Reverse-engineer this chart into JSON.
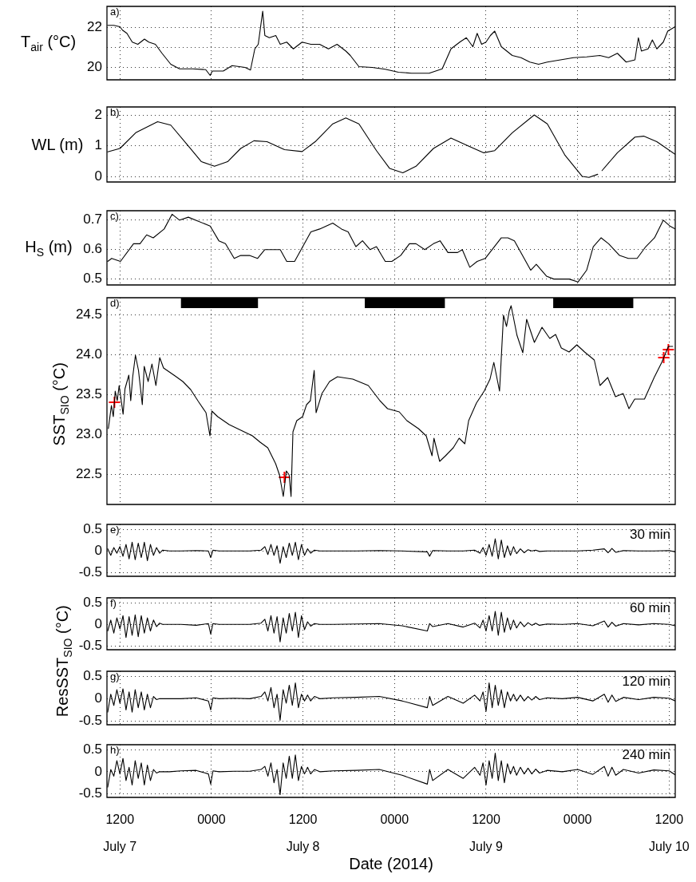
{
  "chart_data": [
    {
      "type": "line",
      "ylabel": "T$_{air}$ (°C)",
      "annotations": [
        "a)"
      ],
      "grid": true,
      "tick_labels": "y",
      "marker": "none",
      "xlim": [
        "2014-07-07T10:18",
        "2014-07-10T12:48"
      ],
      "xticks": [
        {
          "value": "2014-07-07T12:00",
          "label": null
        },
        {
          "value": "2014-07-08T00:00",
          "label": null
        },
        {
          "value": "2014-07-08T12:00",
          "label": null
        },
        {
          "value": "2014-07-09T00:00",
          "label": null
        },
        {
          "value": "2014-07-09T12:00",
          "label": null
        },
        {
          "value": "2014-07-10T00:00",
          "label": null
        },
        {
          "value": "2014-07-10T12:00",
          "label": null
        }
      ],
      "ylim": [
        19.38,
        23.06
      ],
      "yticks": [
        20,
        {
          "value": 21,
          "label": null
        },
        22
      ],
      "x": [
        "2014-07-07T10:24",
        "2014-07-07T11:12",
        "2014-07-07T12:00",
        "2014-07-07T12:20",
        "2014-07-07T12:55",
        "2014-07-07T13:37",
        "2014-07-07T14:21",
        "2014-07-07T15:13",
        "2014-07-07T15:47",
        "2014-07-07T16:39",
        "2014-07-07T17:31",
        "2014-07-07T18:40",
        "2014-07-07T19:49",
        "2014-07-07T21:32",
        "2014-07-07T23:15",
        "2014-07-07T23:50",
        "2014-07-08T00:07",
        "2014-07-08T01:33",
        "2014-07-08T02:42",
        "2014-07-08T04:25",
        "2014-07-08T05:07",
        "2014-07-08T05:41",
        "2014-07-08T06:08",
        "2014-07-08T06:43",
        "2014-07-08T07:00",
        "2014-07-08T07:35",
        "2014-07-08T08:26",
        "2014-07-08T09:01",
        "2014-07-08T09:52",
        "2014-07-08T10:44",
        "2014-07-08T11:53",
        "2014-07-08T13:02",
        "2014-07-08T14:11",
        "2014-07-08T15:20",
        "2014-07-08T16:28",
        "2014-07-08T17:37",
        "2014-07-08T18:12",
        "2014-07-08T19:20",
        "2014-07-08T21:04",
        "2014-07-08T22:47",
        "2014-07-09T00:31",
        "2014-07-09T02:14",
        "2014-07-09T04:32",
        "2014-07-09T06:15",
        "2014-07-09T07:24",
        "2014-07-09T08:33",
        "2014-07-09T09:25",
        "2014-07-09T10:16",
        "2014-07-09T10:50",
        "2014-07-09T11:25",
        "2014-07-09T11:59",
        "2014-07-09T12:34",
        "2014-07-09T13:08",
        "2014-07-09T14:00",
        "2014-07-09T15:26",
        "2014-07-09T16:35",
        "2014-07-09T17:44",
        "2014-07-09T18:53",
        "2014-07-09T20:02",
        "2014-07-09T21:45",
        "2014-07-09T23:28",
        "2014-07-10T01:11",
        "2014-07-10T02:55",
        "2014-07-10T04:04",
        "2014-07-10T05:13",
        "2014-07-10T06:22",
        "2014-07-10T07:31",
        "2014-07-10T07:58",
        "2014-07-10T08:22",
        "2014-07-10T09:14",
        "2014-07-10T09:48",
        "2014-07-10T10:23",
        "2014-07-10T11:14",
        "2014-07-10T11:49",
        "2014-07-10T12:47"
      ],
      "series": [
        {
          "color": "#000000",
          "values": [
            22.11,
            22.11,
            22.04,
            21.87,
            21.71,
            21.27,
            21.16,
            21.42,
            21.27,
            21.16,
            20.71,
            20.16,
            19.93,
            19.93,
            19.89,
            19.6,
            19.82,
            19.82,
            20.09,
            20.0,
            19.87,
            20.93,
            21.16,
            22.82,
            21.6,
            21.49,
            21.6,
            21.16,
            21.27,
            20.93,
            21.27,
            21.16,
            21.16,
            20.93,
            21.16,
            20.82,
            20.6,
            20.04,
            20.0,
            19.91,
            19.76,
            19.71,
            19.71,
            19.93,
            20.93,
            21.27,
            21.49,
            21.04,
            21.71,
            21.16,
            21.27,
            21.6,
            21.82,
            21.04,
            20.6,
            20.49,
            20.27,
            20.16,
            20.27,
            20.38,
            20.49,
            20.53,
            20.6,
            20.49,
            20.71,
            20.27,
            20.38,
            21.49,
            20.82,
            20.93,
            21.38,
            20.93,
            21.27,
            21.82,
            22.04
          ]
        }
      ]
    },
    {
      "type": "line",
      "ylabel": "WL (m)",
      "annotations": [
        "b)"
      ],
      "grid": true,
      "tick_labels": "y",
      "marker": "none",
      "xlim": [
        "2014-07-07T10:18",
        "2014-07-10T12:48"
      ],
      "xticks": [
        {
          "value": "2014-07-07T12:00",
          "label": null
        },
        {
          "value": "2014-07-08T00:00",
          "label": null
        },
        {
          "value": "2014-07-08T12:00",
          "label": null
        },
        {
          "value": "2014-07-09T00:00",
          "label": null
        },
        {
          "value": "2014-07-09T12:00",
          "label": null
        },
        {
          "value": "2014-07-10T00:00",
          "label": null
        },
        {
          "value": "2014-07-10T12:00",
          "label": null
        }
      ],
      "ylim": [
        -0.18,
        2.26
      ],
      "yticks": [
        0,
        1,
        2
      ],
      "x": [
        "2014-07-07T10:24",
        "2014-07-07T12:00",
        "2014-07-07T14:04",
        "2014-07-07T16:56",
        "2014-07-07T18:40",
        "2014-07-07T20:58",
        "2014-07-07T22:41",
        "2014-07-08T00:24",
        "2014-07-08T02:07",
        "2014-07-08T03:50",
        "2014-07-08T05:34",
        "2014-07-08T07:17",
        "2014-07-08T09:35",
        "2014-07-08T11:53",
        "2014-07-08T13:36",
        "2014-07-08T15:54",
        "2014-07-08T17:37",
        "2014-07-08T19:20",
        "2014-07-08T21:38",
        "2014-07-08T23:22",
        "2014-07-09T01:05",
        "2014-07-09T02:49",
        "2014-07-09T05:06",
        "2014-07-09T07:24",
        "2014-07-09T09:42",
        "2014-07-09T11:42",
        "2014-07-09T13:08",
        "2014-07-09T15:26",
        "2014-07-09T18:19",
        "2014-07-09T20:02",
        "2014-07-09T22:19",
        "2014-07-10T00:37",
        "2014-07-10T01:29",
        "2014-07-10T02:38",
        "2014-07-10T02:55",
        "2014-07-10T03:12",
        "2014-07-10T05:13",
        "2014-07-10T07:31",
        "2014-07-10T08:40",
        "2014-07-10T10:23",
        "2014-07-10T12:47"
      ],
      "series": [
        {
          "color": "#000000",
          "values": [
            0.8,
            0.91,
            1.42,
            1.78,
            1.67,
            0.99,
            0.48,
            0.33,
            0.48,
            0.91,
            1.16,
            1.13,
            0.87,
            0.81,
            1.13,
            1.71,
            1.9,
            1.71,
            0.84,
            0.26,
            0.12,
            0.33,
            0.91,
            1.25,
            0.99,
            0.77,
            0.84,
            1.42,
            2.0,
            1.71,
            0.7,
            0.0,
            -0.03,
            0.07,
            null,
            0.19,
            0.77,
            1.28,
            1.31,
            1.13,
            0.72
          ]
        }
      ]
    },
    {
      "type": "line",
      "ylabel": "H$_{S}$ (m)",
      "annotations": [
        "c)"
      ],
      "grid": true,
      "tick_labels": "y",
      "marker": "none",
      "xlim": [
        "2014-07-07T10:18",
        "2014-07-10T12:48"
      ],
      "xticks": [
        {
          "value": "2014-07-07T12:00",
          "label": null
        },
        {
          "value": "2014-07-08T00:00",
          "label": null
        },
        {
          "value": "2014-07-08T12:00",
          "label": null
        },
        {
          "value": "2014-07-09T00:00",
          "label": null
        },
        {
          "value": "2014-07-09T12:00",
          "label": null
        },
        {
          "value": "2014-07-10T00:00",
          "label": null
        },
        {
          "value": "2014-07-10T12:00",
          "label": null
        }
      ],
      "ylim": [
        0.48,
        0.732
      ],
      "yticks": [
        0.5,
        0.6,
        0.7
      ],
      "x": [
        "2014-07-07T10:24",
        "2014-07-07T10:55",
        "2014-07-07T12:04",
        "2014-07-07T13:47",
        "2014-07-07T14:38",
        "2014-07-07T15:30",
        "2014-07-07T16:22",
        "2014-07-07T17:48",
        "2014-07-07T18:50",
        "2014-07-07T19:49",
        "2014-07-07T20:58",
        "2014-07-07T23:50",
        "2014-07-08T00:58",
        "2014-07-08T01:50",
        "2014-07-08T02:59",
        "2014-07-08T03:50",
        "2014-07-08T04:59",
        "2014-07-08T06:02",
        "2014-07-08T07:00",
        "2014-07-08T09:01",
        "2014-07-08T09:52",
        "2014-07-08T10:54",
        "2014-07-08T13:02",
        "2014-07-08T14:11",
        "2014-07-08T15:54",
        "2014-07-08T17:03",
        "2014-07-08T17:55",
        "2014-07-08T18:56",
        "2014-07-08T19:48",
        "2014-07-08T20:47",
        "2014-07-08T21:38",
        "2014-07-08T22:47",
        "2014-07-08T23:39",
        "2014-07-09T00:48",
        "2014-07-09T01:57",
        "2014-07-09T02:49",
        "2014-07-09T03:58",
        "2014-07-09T05:06",
        "2014-07-09T05:58",
        "2014-07-09T07:00",
        "2014-07-09T08:16",
        "2014-07-09T08:53",
        "2014-07-09T09:52",
        "2014-07-09T10:50",
        "2014-07-09T11:53",
        "2014-07-09T14:00",
        "2014-07-09T14:52",
        "2014-07-09T15:43",
        "2014-07-09T17:51",
        "2014-07-09T18:35",
        "2014-07-09T19:55",
        "2014-07-09T20:53",
        "2014-07-09T22:54",
        "2014-07-10T00:03",
        "2014-07-10T01:11",
        "2014-07-10T02:03",
        "2014-07-10T03:05",
        "2014-07-10T04:04",
        "2014-07-10T05:30",
        "2014-07-10T06:39",
        "2014-07-10T07:48",
        "2014-07-10T08:56",
        "2014-07-10T10:05",
        "2014-07-10T11:14",
        "2014-07-10T12:06",
        "2014-07-10T12:47"
      ],
      "series": [
        {
          "color": "#000000",
          "values": [
            0.56,
            0.57,
            0.56,
            0.62,
            0.62,
            0.65,
            0.64,
            0.67,
            0.72,
            0.7,
            0.71,
            0.68,
            0.63,
            0.62,
            0.57,
            0.58,
            0.58,
            0.57,
            0.6,
            0.6,
            0.56,
            0.56,
            0.66,
            0.67,
            0.69,
            0.67,
            0.66,
            0.61,
            0.63,
            0.6,
            0.61,
            0.56,
            0.56,
            0.58,
            0.62,
            0.62,
            0.6,
            0.62,
            0.63,
            0.59,
            0.59,
            0.6,
            0.54,
            0.56,
            0.57,
            0.64,
            0.64,
            0.63,
            0.53,
            0.55,
            0.51,
            0.5,
            0.5,
            0.49,
            0.53,
            0.61,
            0.64,
            0.62,
            0.58,
            0.57,
            0.57,
            0.61,
            0.64,
            0.7,
            0.68,
            0.67
          ]
        }
      ]
    },
    {
      "type": "line",
      "ylabel": "SST$_{SIO}$ (°C)",
      "annotations": [
        "d)"
      ],
      "grid": true,
      "tick_labels": "y",
      "xlim": [
        "2014-07-07T10:18",
        "2014-07-10T12:48"
      ],
      "xticks": [
        {
          "value": "2014-07-07T12:00",
          "label": null
        },
        {
          "value": "2014-07-08T00:00",
          "label": null
        },
        {
          "value": "2014-07-08T12:00",
          "label": null
        },
        {
          "value": "2014-07-09T00:00",
          "label": null
        },
        {
          "value": "2014-07-09T12:00",
          "label": null
        },
        {
          "value": "2014-07-10T00:00",
          "label": null
        },
        {
          "value": "2014-07-10T12:00",
          "label": null
        }
      ],
      "ylim": [
        22.12,
        24.71
      ],
      "yticks": [
        {
          "value": 22.5,
          "label": "22.5"
        },
        {
          "value": 23,
          "label": "23.0"
        },
        {
          "value": 23.5,
          "label": "23.5"
        },
        {
          "value": 24,
          "label": "24.0"
        },
        {
          "value": 24.5,
          "label": "24.5"
        }
      ],
      "bands": [
        {
          "axis": "x",
          "from": "2014-07-07T20:00",
          "to": "2014-07-08T06:06",
          "color": "#000000"
        },
        {
          "axis": "x",
          "from": "2014-07-08T20:06",
          "to": "2014-07-09T06:36",
          "color": "#000000"
        },
        {
          "axis": "x",
          "from": "2014-07-09T20:48",
          "to": "2014-07-10T07:18",
          "color": "#000000"
        }
      ],
      "x": [
        "2014-07-07T10:29",
        "2014-07-07T10:53",
        "2014-07-07T11:08",
        "2014-07-07T11:23",
        "2014-07-07T11:39",
        "2014-07-07T11:54",
        "2014-07-07T12:25",
        "2014-07-07T12:40",
        "2014-07-07T13:10",
        "2014-07-07T13:25",
        "2014-07-07T13:40",
        "2014-07-07T14:02",
        "2014-07-07T14:26",
        "2014-07-07T14:56",
        "2014-07-07T15:11",
        "2014-07-07T15:42",
        "2014-07-07T16:12",
        "2014-07-07T16:43",
        "2014-07-07T17:13",
        "2014-07-07T17:43",
        "2014-07-07T19:14",
        "2014-07-07T20:15",
        "2014-07-07T21:16",
        "2014-07-07T22:17",
        "2014-07-07T23:17",
        "2014-07-07T23:48",
        "2014-07-08T00:03",
        "2014-07-08T00:49",
        "2014-07-08T02:20",
        "2014-07-08T03:51",
        "2014-07-08T05:22",
        "2014-07-08T06:23",
        "2014-07-08T07:23",
        "2014-07-08T08:25",
        "2014-07-08T08:55",
        "2014-07-08T09:25",
        "2014-07-08T09:49",
        "2014-07-08T10:11",
        "2014-07-08T10:26",
        "2014-07-08T10:41",
        "2014-07-08T11:11",
        "2014-07-08T11:57",
        "2014-07-08T12:28",
        "2014-07-08T12:58",
        "2014-07-08T13:28",
        "2014-07-08T13:43",
        "2014-07-08T14:29",
        "2014-07-08T15:29",
        "2014-07-08T16:31",
        "2014-07-08T18:32",
        "2014-07-08T20:34",
        "2014-07-08T22:05",
        "2014-07-08T23:05",
        "2014-07-09T00:37",
        "2014-07-09T01:37",
        "2014-07-09T03:08",
        "2014-07-09T04:09",
        "2014-07-09T04:55",
        "2014-07-09T05:10",
        "2014-07-09T05:55",
        "2014-07-09T06:41",
        "2014-07-09T07:42",
        "2014-07-09T08:28",
        "2014-07-09T09:13",
        "2014-07-09T09:43",
        "2014-07-09T10:44",
        "2014-07-09T11:45",
        "2014-07-09T12:31",
        "2014-07-09T13:01",
        "2014-07-09T13:46",
        "2014-07-09T14:17",
        "2014-07-09T14:41",
        "2014-07-09T15:02",
        "2014-07-09T15:17",
        "2014-07-09T16:03",
        "2014-07-09T16:49",
        "2014-07-09T17:19",
        "2014-07-09T18:20",
        "2014-07-09T19:20",
        "2014-07-09T20:21",
        "2014-07-09T21:07",
        "2014-07-09T21:52",
        "2014-07-09T22:53",
        "2014-07-09T23:54",
        "2014-07-10T00:55",
        "2014-07-10T02:11",
        "2014-07-10T02:56",
        "2014-07-10T03:57",
        "2014-07-10T04:58",
        "2014-07-10T05:58",
        "2014-07-10T06:44",
        "2014-07-10T07:29",
        "2014-07-10T08:46",
        "2014-07-10T10:02",
        "2014-07-10T11:02",
        "2014-07-10T11:54",
        "2014-07-10T12:28"
      ],
      "series": [
        {
          "color": "#000000",
          "marker": "none",
          "values": [
            23.07,
            23.36,
            23.22,
            23.54,
            23.42,
            23.61,
            23.25,
            23.57,
            23.74,
            23.42,
            23.71,
            23.99,
            23.8,
            23.37,
            23.85,
            23.66,
            23.88,
            23.61,
            23.96,
            23.83,
            23.73,
            23.66,
            23.56,
            23.41,
            23.27,
            22.98,
            23.29,
            23.22,
            23.12,
            23.05,
            22.98,
            22.9,
            22.83,
            22.63,
            22.49,
            22.22,
            22.54,
            22.49,
            22.22,
            23.03,
            23.17,
            23.22,
            23.37,
            23.42,
            23.8,
            23.27,
            23.51,
            23.66,
            23.72,
            23.69,
            23.61,
            23.42,
            23.32,
            23.28,
            23.17,
            23.07,
            22.98,
            22.73,
            22.95,
            22.66,
            22.73,
            22.83,
            22.95,
            22.88,
            23.17,
            23.39,
            23.54,
            23.69,
            23.9,
            23.54,
            24.49,
            24.35,
            24.54,
            24.61,
            24.24,
            24.02,
            24.44,
            24.15,
            24.34,
            24.2,
            24.25,
            24.08,
            24.03,
            24.12,
            24.03,
            23.93,
            23.61,
            23.71,
            23.47,
            23.51,
            23.32,
            23.44,
            23.44,
            23.71,
            23.9,
            24.1,
            24.1
          ]
        },
        {
          "type": "scatter",
          "color": "#ff0000",
          "marker": "cross",
          "x": [
            "2014-07-07T11:17",
            "2014-07-08T09:34",
            "2014-07-10T11:17",
            "2014-07-10T11:54"
          ],
          "values": [
            23.4,
            22.46,
            23.96,
            24.06
          ]
        }
      ]
    },
    {
      "type": "line",
      "ylabel": "ResSST$_{SIO}$ (°C)",
      "annotations": [
        "e)",
        "30 min"
      ],
      "grid": true,
      "tick_labels": "y",
      "marker": "none",
      "xlim": [
        "2014-07-07T10:18",
        "2014-07-10T12:48"
      ],
      "xticks": [
        {
          "value": "2014-07-07T12:00",
          "label": null
        },
        {
          "value": "2014-07-08T00:00",
          "label": null
        },
        {
          "value": "2014-07-08T12:00",
          "label": null
        },
        {
          "value": "2014-07-09T00:00",
          "label": null
        },
        {
          "value": "2014-07-09T12:00",
          "label": null
        },
        {
          "value": "2014-07-10T00:00",
          "label": null
        },
        {
          "value": "2014-07-10T12:00",
          "label": null
        }
      ],
      "ylim": [
        -0.58,
        0.61
      ],
      "yticks": [
        -0.5,
        0,
        0.5
      ],
      "x": [
        "2014-07-07T10:24",
        "2014-07-07T10:48",
        "2014-07-07T11:12",
        "2014-07-07T11:36",
        "2014-07-07T12:00",
        "2014-07-07T12:24",
        "2014-07-07T12:48",
        "2014-07-07T13:12",
        "2014-07-07T13:36",
        "2014-07-07T14:00",
        "2014-07-07T14:24",
        "2014-07-07T14:48",
        "2014-07-07T15:12",
        "2014-07-07T15:36",
        "2014-07-07T16:00",
        "2014-07-07T16:24",
        "2014-07-07T16:48",
        "2014-07-07T17:12",
        "2014-07-07T17:36",
        "2014-07-07T18:30",
        "2014-07-07T20:00",
        "2014-07-07T22:00",
        "2014-07-07T23:36",
        "2014-07-07T23:54",
        "2014-07-08T00:12",
        "2014-07-08T01:00",
        "2014-07-08T03:00",
        "2014-07-08T05:00",
        "2014-07-08T06:30",
        "2014-07-08T07:00",
        "2014-07-08T07:24",
        "2014-07-08T07:48",
        "2014-07-08T08:12",
        "2014-07-08T08:36",
        "2014-07-08T09:00",
        "2014-07-08T09:24",
        "2014-07-08T09:48",
        "2014-07-08T10:12",
        "2014-07-08T10:36",
        "2014-07-08T11:00",
        "2014-07-08T11:24",
        "2014-07-08T11:48",
        "2014-07-08T12:12",
        "2014-07-08T12:36",
        "2014-07-08T13:00",
        "2014-07-08T13:30",
        "2014-07-08T14:12",
        "2014-07-08T16:00",
        "2014-07-08T19:00",
        "2014-07-08T22:00",
        "2014-07-09T01:00",
        "2014-07-09T04:18",
        "2014-07-09T04:36",
        "2014-07-09T05:00",
        "2014-07-09T07:00",
        "2014-07-09T09:00",
        "2014-07-09T10:30",
        "2014-07-09T11:12",
        "2014-07-09T11:36",
        "2014-07-09T12:00",
        "2014-07-09T12:24",
        "2014-07-09T12:48",
        "2014-07-09T13:12",
        "2014-07-09T13:36",
        "2014-07-09T14:00",
        "2014-07-09T14:24",
        "2014-07-09T14:48",
        "2014-07-09T15:12",
        "2014-07-09T15:36",
        "2014-07-09T16:00",
        "2014-07-09T16:30",
        "2014-07-09T17:00",
        "2014-07-09T17:30",
        "2014-07-09T18:00",
        "2014-07-09T18:30",
        "2014-07-09T19:00",
        "2014-07-09T20:00",
        "2014-07-09T22:00",
        "2014-07-10T00:00",
        "2014-07-10T02:00",
        "2014-07-10T03:30",
        "2014-07-10T04:00",
        "2014-07-10T04:30",
        "2014-07-10T05:00",
        "2014-07-10T06:00",
        "2014-07-10T08:00",
        "2014-07-10T10:00",
        "2014-07-10T12:00",
        "2014-07-10T12:48"
      ],
      "series": [
        {
          "color": "#000000",
          "values": [
            0.05,
            -0.1,
            0.08,
            -0.05,
            0.1,
            -0.12,
            0.15,
            -0.18,
            0.2,
            -0.2,
            0.18,
            -0.15,
            0.2,
            -0.22,
            0.15,
            -0.1,
            0.08,
            -0.05,
            0.02,
            0,
            0,
            0.01,
            0,
            -0.15,
            0.02,
            0,
            0,
            0,
            0.02,
            0.1,
            -0.08,
            0.15,
            -0.1,
            0.12,
            -0.28,
            0.1,
            -0.15,
            0.18,
            -0.1,
            0.2,
            -0.2,
            0.15,
            -0.1,
            0.05,
            -0.05,
            0.02,
            0,
            0,
            0,
            0.01,
            0,
            -0.02,
            -0.12,
            0.01,
            0,
            0,
            0.02,
            -0.05,
            0.08,
            -0.1,
            0.15,
            -0.12,
            0.28,
            -0.18,
            0.25,
            -0.15,
            0.12,
            -0.1,
            0.1,
            -0.06,
            0.05,
            -0.04,
            0.03,
            0,
            0.02,
            -0.01,
            0,
            0,
            0,
            0.02,
            0.05,
            -0.04,
            0.06,
            -0.03,
            0.01,
            0,
            0,
            0.01,
            -0.02
          ]
        }
      ]
    },
    {
      "type": "line",
      "annotations": [
        "f)",
        "60 min"
      ],
      "grid": true,
      "tick_labels": "y",
      "marker": "none",
      "xlim": [
        "2014-07-07T10:18",
        "2014-07-10T12:48"
      ],
      "xticks": [
        {
          "value": "2014-07-07T12:00",
          "label": null
        },
        {
          "value": "2014-07-08T00:00",
          "label": null
        },
        {
          "value": "2014-07-08T12:00",
          "label": null
        },
        {
          "value": "2014-07-09T00:00",
          "label": null
        },
        {
          "value": "2014-07-09T12:00",
          "label": null
        },
        {
          "value": "2014-07-10T00:00",
          "label": null
        },
        {
          "value": "2014-07-10T12:00",
          "label": null
        }
      ],
      "ylim": [
        -0.58,
        0.61
      ],
      "yticks": [
        -0.5,
        0,
        0.5
      ],
      "x": [
        "2014-07-07T10:24",
        "2014-07-07T10:48",
        "2014-07-07T11:12",
        "2014-07-07T11:36",
        "2014-07-07T12:00",
        "2014-07-07T12:24",
        "2014-07-07T12:48",
        "2014-07-07T13:12",
        "2014-07-07T13:36",
        "2014-07-07T14:00",
        "2014-07-07T14:24",
        "2014-07-07T14:48",
        "2014-07-07T15:12",
        "2014-07-07T15:36",
        "2014-07-07T16:00",
        "2014-07-07T16:24",
        "2014-07-07T16:48",
        "2014-07-07T17:12",
        "2014-07-07T17:36",
        "2014-07-07T18:30",
        "2014-07-07T20:00",
        "2014-07-07T22:00",
        "2014-07-07T23:36",
        "2014-07-07T23:54",
        "2014-07-08T00:12",
        "2014-07-08T01:00",
        "2014-07-08T03:00",
        "2014-07-08T05:00",
        "2014-07-08T06:30",
        "2014-07-08T07:00",
        "2014-07-08T07:24",
        "2014-07-08T07:48",
        "2014-07-08T08:12",
        "2014-07-08T08:36",
        "2014-07-08T09:00",
        "2014-07-08T09:24",
        "2014-07-08T09:48",
        "2014-07-08T10:12",
        "2014-07-08T10:36",
        "2014-07-08T11:00",
        "2014-07-08T11:24",
        "2014-07-08T11:48",
        "2014-07-08T12:12",
        "2014-07-08T12:36",
        "2014-07-08T13:00",
        "2014-07-08T13:30",
        "2014-07-08T14:12",
        "2014-07-08T16:00",
        "2014-07-08T19:00",
        "2014-07-08T22:00",
        "2014-07-09T01:00",
        "2014-07-09T04:18",
        "2014-07-09T04:36",
        "2014-07-09T05:00",
        "2014-07-09T07:00",
        "2014-07-09T09:00",
        "2014-07-09T10:30",
        "2014-07-09T11:12",
        "2014-07-09T11:36",
        "2014-07-09T12:00",
        "2014-07-09T12:24",
        "2014-07-09T12:48",
        "2014-07-09T13:12",
        "2014-07-09T13:36",
        "2014-07-09T14:00",
        "2014-07-09T14:24",
        "2014-07-09T14:48",
        "2014-07-09T15:12",
        "2014-07-09T15:36",
        "2014-07-09T16:00",
        "2014-07-09T16:30",
        "2014-07-09T17:00",
        "2014-07-09T17:30",
        "2014-07-09T18:00",
        "2014-07-09T18:30",
        "2014-07-09T19:00",
        "2014-07-09T20:00",
        "2014-07-09T22:00",
        "2014-07-10T00:00",
        "2014-07-10T02:00",
        "2014-07-10T03:30",
        "2014-07-10T04:00",
        "2014-07-10T04:30",
        "2014-07-10T05:00",
        "2014-07-10T06:00",
        "2014-07-10T08:00",
        "2014-07-10T10:00",
        "2014-07-10T12:00",
        "2014-07-10T12:48"
      ],
      "series": [
        {
          "color": "#000000",
          "values": [
            -0.15,
            0.1,
            -0.2,
            0.15,
            -0.1,
            0.2,
            -0.3,
            0.18,
            -0.25,
            0.22,
            -0.28,
            0.2,
            -0.2,
            0.15,
            -0.15,
            0.1,
            -0.05,
            0.03,
            0.0,
            0,
            0,
            -0.02,
            0.02,
            -0.22,
            0.02,
            0,
            0,
            0,
            0.03,
            0.12,
            -0.15,
            0.2,
            -0.2,
            0.18,
            -0.4,
            0.15,
            -0.2,
            0.25,
            -0.15,
            0.28,
            -0.3,
            0.2,
            -0.12,
            0.06,
            -0.04,
            0.02,
            0,
            0,
            0.01,
            0.02,
            -0.03,
            -0.15,
            0.02,
            -0.05,
            0.02,
            -0.06,
            0.03,
            -0.08,
            0.1,
            -0.15,
            0.2,
            -0.15,
            0.3,
            -0.25,
            0.28,
            -0.18,
            0.15,
            -0.12,
            0.1,
            -0.08,
            0.06,
            -0.05,
            0.04,
            -0.02,
            0.03,
            -0.02,
            0.01,
            0,
            0.02,
            -0.03,
            0.08,
            -0.06,
            0.05,
            -0.04,
            0.02,
            -0.01,
            0.02,
            0,
            -0.03
          ]
        }
      ]
    },
    {
      "type": "line",
      "annotations": [
        "g)",
        "120 min"
      ],
      "grid": true,
      "tick_labels": "y",
      "marker": "none",
      "xlim": [
        "2014-07-07T10:18",
        "2014-07-10T12:48"
      ],
      "xticks": [
        {
          "value": "2014-07-07T12:00",
          "label": null
        },
        {
          "value": "2014-07-08T00:00",
          "label": null
        },
        {
          "value": "2014-07-08T12:00",
          "label": null
        },
        {
          "value": "2014-07-09T00:00",
          "label": null
        },
        {
          "value": "2014-07-09T12:00",
          "label": null
        },
        {
          "value": "2014-07-10T00:00",
          "label": null
        },
        {
          "value": "2014-07-10T12:00",
          "label": null
        }
      ],
      "ylim": [
        -0.58,
        0.61
      ],
      "yticks": [
        -0.5,
        0,
        0.5
      ],
      "x": [
        "2014-07-07T10:24",
        "2014-07-07T10:48",
        "2014-07-07T11:12",
        "2014-07-07T11:36",
        "2014-07-07T12:00",
        "2014-07-07T12:24",
        "2014-07-07T12:48",
        "2014-07-07T13:12",
        "2014-07-07T13:36",
        "2014-07-07T14:00",
        "2014-07-07T14:24",
        "2014-07-07T14:48",
        "2014-07-07T15:12",
        "2014-07-07T15:36",
        "2014-07-07T16:00",
        "2014-07-07T16:24",
        "2014-07-07T16:48",
        "2014-07-07T17:12",
        "2014-07-07T17:36",
        "2014-07-07T18:30",
        "2014-07-07T20:00",
        "2014-07-07T22:00",
        "2014-07-07T23:36",
        "2014-07-07T23:54",
        "2014-07-08T00:12",
        "2014-07-08T01:00",
        "2014-07-08T03:00",
        "2014-07-08T05:00",
        "2014-07-08T06:30",
        "2014-07-08T07:00",
        "2014-07-08T07:24",
        "2014-07-08T07:48",
        "2014-07-08T08:12",
        "2014-07-08T08:36",
        "2014-07-08T09:00",
        "2014-07-08T09:24",
        "2014-07-08T09:48",
        "2014-07-08T10:12",
        "2014-07-08T10:36",
        "2014-07-08T11:00",
        "2014-07-08T11:24",
        "2014-07-08T11:48",
        "2014-07-08T12:12",
        "2014-07-08T12:36",
        "2014-07-08T13:00",
        "2014-07-08T13:30",
        "2014-07-08T14:12",
        "2014-07-08T16:00",
        "2014-07-08T19:00",
        "2014-07-08T22:00",
        "2014-07-09T01:00",
        "2014-07-09T04:18",
        "2014-07-09T04:36",
        "2014-07-09T05:00",
        "2014-07-09T07:00",
        "2014-07-09T09:00",
        "2014-07-09T10:30",
        "2014-07-09T11:12",
        "2014-07-09T11:36",
        "2014-07-09T12:00",
        "2014-07-09T12:24",
        "2014-07-09T12:48",
        "2014-07-09T13:12",
        "2014-07-09T13:36",
        "2014-07-09T14:00",
        "2014-07-09T14:24",
        "2014-07-09T14:48",
        "2014-07-09T15:12",
        "2014-07-09T15:36",
        "2014-07-09T16:00",
        "2014-07-09T16:30",
        "2014-07-09T17:00",
        "2014-07-09T17:30",
        "2014-07-09T18:00",
        "2014-07-09T18:30",
        "2014-07-09T19:00",
        "2014-07-09T20:00",
        "2014-07-09T22:00",
        "2014-07-10T00:00",
        "2014-07-10T02:00",
        "2014-07-10T03:30",
        "2014-07-10T04:00",
        "2014-07-10T04:30",
        "2014-07-10T05:00",
        "2014-07-10T06:00",
        "2014-07-10T08:00",
        "2014-07-10T10:00",
        "2014-07-10T12:00",
        "2014-07-10T12:48"
      ],
      "series": [
        {
          "color": "#000000",
          "values": [
            -0.3,
            0.1,
            -0.15,
            0.2,
            -0.1,
            0.22,
            -0.25,
            0.15,
            -0.3,
            0.2,
            -0.2,
            0.15,
            -0.25,
            0.1,
            -0.2,
            0.05,
            -0.02,
            0.0,
            0.0,
            0,
            0,
            0.02,
            -0.05,
            -0.25,
            0.02,
            0,
            0.01,
            0,
            0.05,
            0.15,
            -0.05,
            0.25,
            -0.2,
            0.1,
            -0.48,
            0.2,
            -0.1,
            0.3,
            -0.15,
            0.35,
            -0.2,
            0.1,
            -0.05,
            0.08,
            -0.05,
            0.05,
            0,
            0.02,
            0.03,
            0.05,
            -0.05,
            -0.2,
            0.05,
            -0.15,
            0.05,
            -0.1,
            0.08,
            -0.05,
            0.15,
            -0.28,
            0.35,
            -0.2,
            0.3,
            -0.15,
            0.2,
            -0.2,
            0.15,
            -0.05,
            0.1,
            -0.05,
            0.08,
            -0.05,
            0.05,
            -0.03,
            0.05,
            -0.02,
            0.02,
            0,
            0.03,
            -0.05,
            0.1,
            -0.08,
            0.08,
            -0.06,
            0.03,
            -0.02,
            0.03,
            0.01,
            -0.05
          ]
        }
      ]
    },
    {
      "type": "line",
      "xlabel": "Date (2014)",
      "annotations": [
        "h)",
        "240 min"
      ],
      "grid": true,
      "marker": "none",
      "xlim": [
        "2014-07-07T10:18",
        "2014-07-10T12:48"
      ],
      "xticks": [
        {
          "value": "2014-07-07T12:00",
          "label": "1200\nJuly 7"
        },
        {
          "value": "2014-07-08T00:00",
          "label": "0000"
        },
        {
          "value": "2014-07-08T12:00",
          "label": "1200\nJuly 8"
        },
        {
          "value": "2014-07-09T00:00",
          "label": "0000"
        },
        {
          "value": "2014-07-09T12:00",
          "label": "1200\nJuly 9"
        },
        {
          "value": "2014-07-10T00:00",
          "label": "0000"
        },
        {
          "value": "2014-07-10T12:00",
          "label": "1200\nJuly 10"
        }
      ],
      "ylim": [
        -0.58,
        0.61
      ],
      "yticks": [
        -0.5,
        0,
        0.5
      ],
      "x": [
        "2014-07-07T10:24",
        "2014-07-07T10:48",
        "2014-07-07T11:12",
        "2014-07-07T11:36",
        "2014-07-07T12:00",
        "2014-07-07T12:24",
        "2014-07-07T12:48",
        "2014-07-07T13:12",
        "2014-07-07T13:36",
        "2014-07-07T14:00",
        "2014-07-07T14:24",
        "2014-07-07T14:48",
        "2014-07-07T15:12",
        "2014-07-07T15:36",
        "2014-07-07T16:00",
        "2014-07-07T16:24",
        "2014-07-07T16:48",
        "2014-07-07T17:12",
        "2014-07-07T17:36",
        "2014-07-07T18:30",
        "2014-07-07T20:00",
        "2014-07-07T22:00",
        "2014-07-07T23:36",
        "2014-07-07T23:54",
        "2014-07-08T00:12",
        "2014-07-08T01:00",
        "2014-07-08T03:00",
        "2014-07-08T05:00",
        "2014-07-08T06:30",
        "2014-07-08T07:00",
        "2014-07-08T07:24",
        "2014-07-08T07:48",
        "2014-07-08T08:12",
        "2014-07-08T08:36",
        "2014-07-08T09:00",
        "2014-07-08T09:24",
        "2014-07-08T09:48",
        "2014-07-08T10:12",
        "2014-07-08T10:36",
        "2014-07-08T11:00",
        "2014-07-08T11:24",
        "2014-07-08T11:48",
        "2014-07-08T12:12",
        "2014-07-08T12:36",
        "2014-07-08T13:00",
        "2014-07-08T13:30",
        "2014-07-08T14:12",
        "2014-07-08T16:00",
        "2014-07-08T19:00",
        "2014-07-08T22:00",
        "2014-07-09T01:00",
        "2014-07-09T04:18",
        "2014-07-09T04:36",
        "2014-07-09T05:00",
        "2014-07-09T07:00",
        "2014-07-09T09:00",
        "2014-07-09T10:30",
        "2014-07-09T11:12",
        "2014-07-09T11:36",
        "2014-07-09T12:00",
        "2014-07-09T12:24",
        "2014-07-09T12:48",
        "2014-07-09T13:12",
        "2014-07-09T13:36",
        "2014-07-09T14:00",
        "2014-07-09T14:24",
        "2014-07-09T14:48",
        "2014-07-09T15:12",
        "2014-07-09T15:36",
        "2014-07-09T16:00",
        "2014-07-09T16:30",
        "2014-07-09T17:00",
        "2014-07-09T17:30",
        "2014-07-09T18:00",
        "2014-07-09T18:30",
        "2014-07-09T19:00",
        "2014-07-09T20:00",
        "2014-07-09T22:00",
        "2014-07-10T00:00",
        "2014-07-10T02:00",
        "2014-07-10T03:30",
        "2014-07-10T04:00",
        "2014-07-10T04:30",
        "2014-07-10T05:00",
        "2014-07-10T06:00",
        "2014-07-10T08:00",
        "2014-07-10T10:00",
        "2014-07-10T12:00",
        "2014-07-10T12:48"
      ],
      "series": [
        {
          "color": "#000000",
          "values": [
            -0.35,
            0.05,
            -0.1,
            0.25,
            -0.05,
            0.3,
            -0.2,
            0.1,
            -0.3,
            0.25,
            -0.15,
            0.2,
            -0.3,
            0.15,
            -0.2,
            0.05,
            -0.03,
            0.0,
            0.0,
            0,
            0.02,
            0.03,
            -0.05,
            -0.28,
            0.02,
            0,
            0.01,
            0.01,
            0.05,
            0.12,
            -0.1,
            0.2,
            -0.25,
            0.05,
            -0.52,
            0.2,
            -0.15,
            0.35,
            -0.15,
            0.38,
            -0.2,
            0.12,
            -0.05,
            0.1,
            -0.05,
            0.05,
            0,
            0.02,
            0.03,
            0.05,
            -0.08,
            -0.28,
            0.05,
            -0.2,
            0.05,
            -0.15,
            0.1,
            -0.08,
            0.2,
            -0.3,
            0.25,
            -0.15,
            0.42,
            -0.2,
            0.25,
            -0.25,
            0.18,
            -0.05,
            0.12,
            -0.08,
            0.1,
            -0.05,
            0.08,
            -0.05,
            0.06,
            -0.03,
            0.03,
            0,
            0.05,
            -0.06,
            0.12,
            -0.1,
            0.1,
            -0.08,
            0.05,
            -0.03,
            0.04,
            0.02,
            -0.07
          ]
        }
      ]
    }
  ]
}
